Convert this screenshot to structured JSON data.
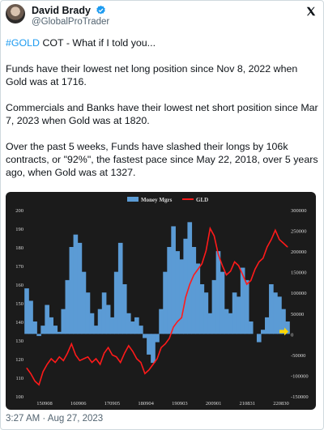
{
  "author": {
    "name": "David Brady",
    "handle": "@GlobalProTrader"
  },
  "tweet": {
    "hashtag": "#GOLD",
    "line1_rest": " COT - What if I told you...",
    "p2": "Funds have their lowest net long position since Nov 8, 2022 when Gold was at 1716.",
    "p3": "Commercials and Banks have their lowest net short position since Mar 7, 2023 when Gold was at 1820.",
    "p4": "Over the past 5 weeks, Funds have slashed their longs by 106k contracts, or \"92%\", the fastest pace since May 22, 2018, over 5 years ago, when Gold was at 1327.",
    "timestamp": "3:27 AM · Aug 27, 2023"
  },
  "colors": {
    "money_mgrs": "#5b9bd5",
    "gld": "#ff1a1a",
    "chart_bg": "#1b1b1b",
    "chart_text": "#d9d9d9",
    "marker": "#ffd700"
  },
  "chart_data": {
    "type": "area",
    "title": "",
    "legend_position": "top-center",
    "grid": false,
    "x_ticks": [
      "150908",
      "160906",
      "170905",
      "180904",
      "190903",
      "200901",
      "210831",
      "220830"
    ],
    "y_left": {
      "lim": [
        100,
        200
      ],
      "ticks": [
        "100",
        "110",
        "120",
        "130",
        "140",
        "150",
        "160",
        "170",
        "180",
        "190",
        "200"
      ]
    },
    "y_right": {
      "lim": [
        -150000,
        300000
      ],
      "ticks": [
        "-150000",
        "-100000",
        "-50000",
        "0",
        "50000",
        "100000",
        "150000",
        "200000",
        "250000",
        "300000"
      ]
    },
    "series": [
      {
        "name": "Money Mgrs",
        "axis": "right",
        "type": "area",
        "values": [
          110000,
          80000,
          30000,
          -5000,
          20000,
          70000,
          40000,
          20000,
          5000,
          60000,
          130000,
          210000,
          240000,
          220000,
          150000,
          100000,
          50000,
          20000,
          60000,
          100000,
          70000,
          40000,
          150000,
          220000,
          120000,
          50000,
          30000,
          40000,
          20000,
          -10000,
          -50000,
          -70000,
          -20000,
          60000,
          150000,
          210000,
          260000,
          200000,
          180000,
          230000,
          270000,
          210000,
          170000,
          120000,
          100000,
          50000,
          130000,
          200000,
          150000,
          60000,
          50000,
          100000,
          90000,
          160000,
          130000,
          30000,
          0,
          -20000,
          10000,
          40000,
          120000,
          100000,
          90000,
          60000,
          30000
        ]
      },
      {
        "name": "GLD",
        "axis": "left",
        "type": "line",
        "values": [
          115,
          112,
          108,
          106,
          113,
          117,
          120,
          118,
          121,
          119,
          123,
          128,
          122,
          119,
          120,
          121,
          118,
          120,
          117,
          123,
          126,
          122,
          121,
          118,
          123,
          127,
          124,
          120,
          118,
          112,
          114,
          117,
          120,
          126,
          128,
          131,
          137,
          140,
          142,
          153,
          160,
          165,
          168,
          171,
          178,
          190,
          186,
          176,
          170,
          165,
          167,
          172,
          170,
          165,
          160,
          162,
          168,
          172,
          174,
          180,
          184,
          189,
          184,
          182,
          180
        ]
      }
    ],
    "annotation": "yellow arrow marker at latest value"
  }
}
